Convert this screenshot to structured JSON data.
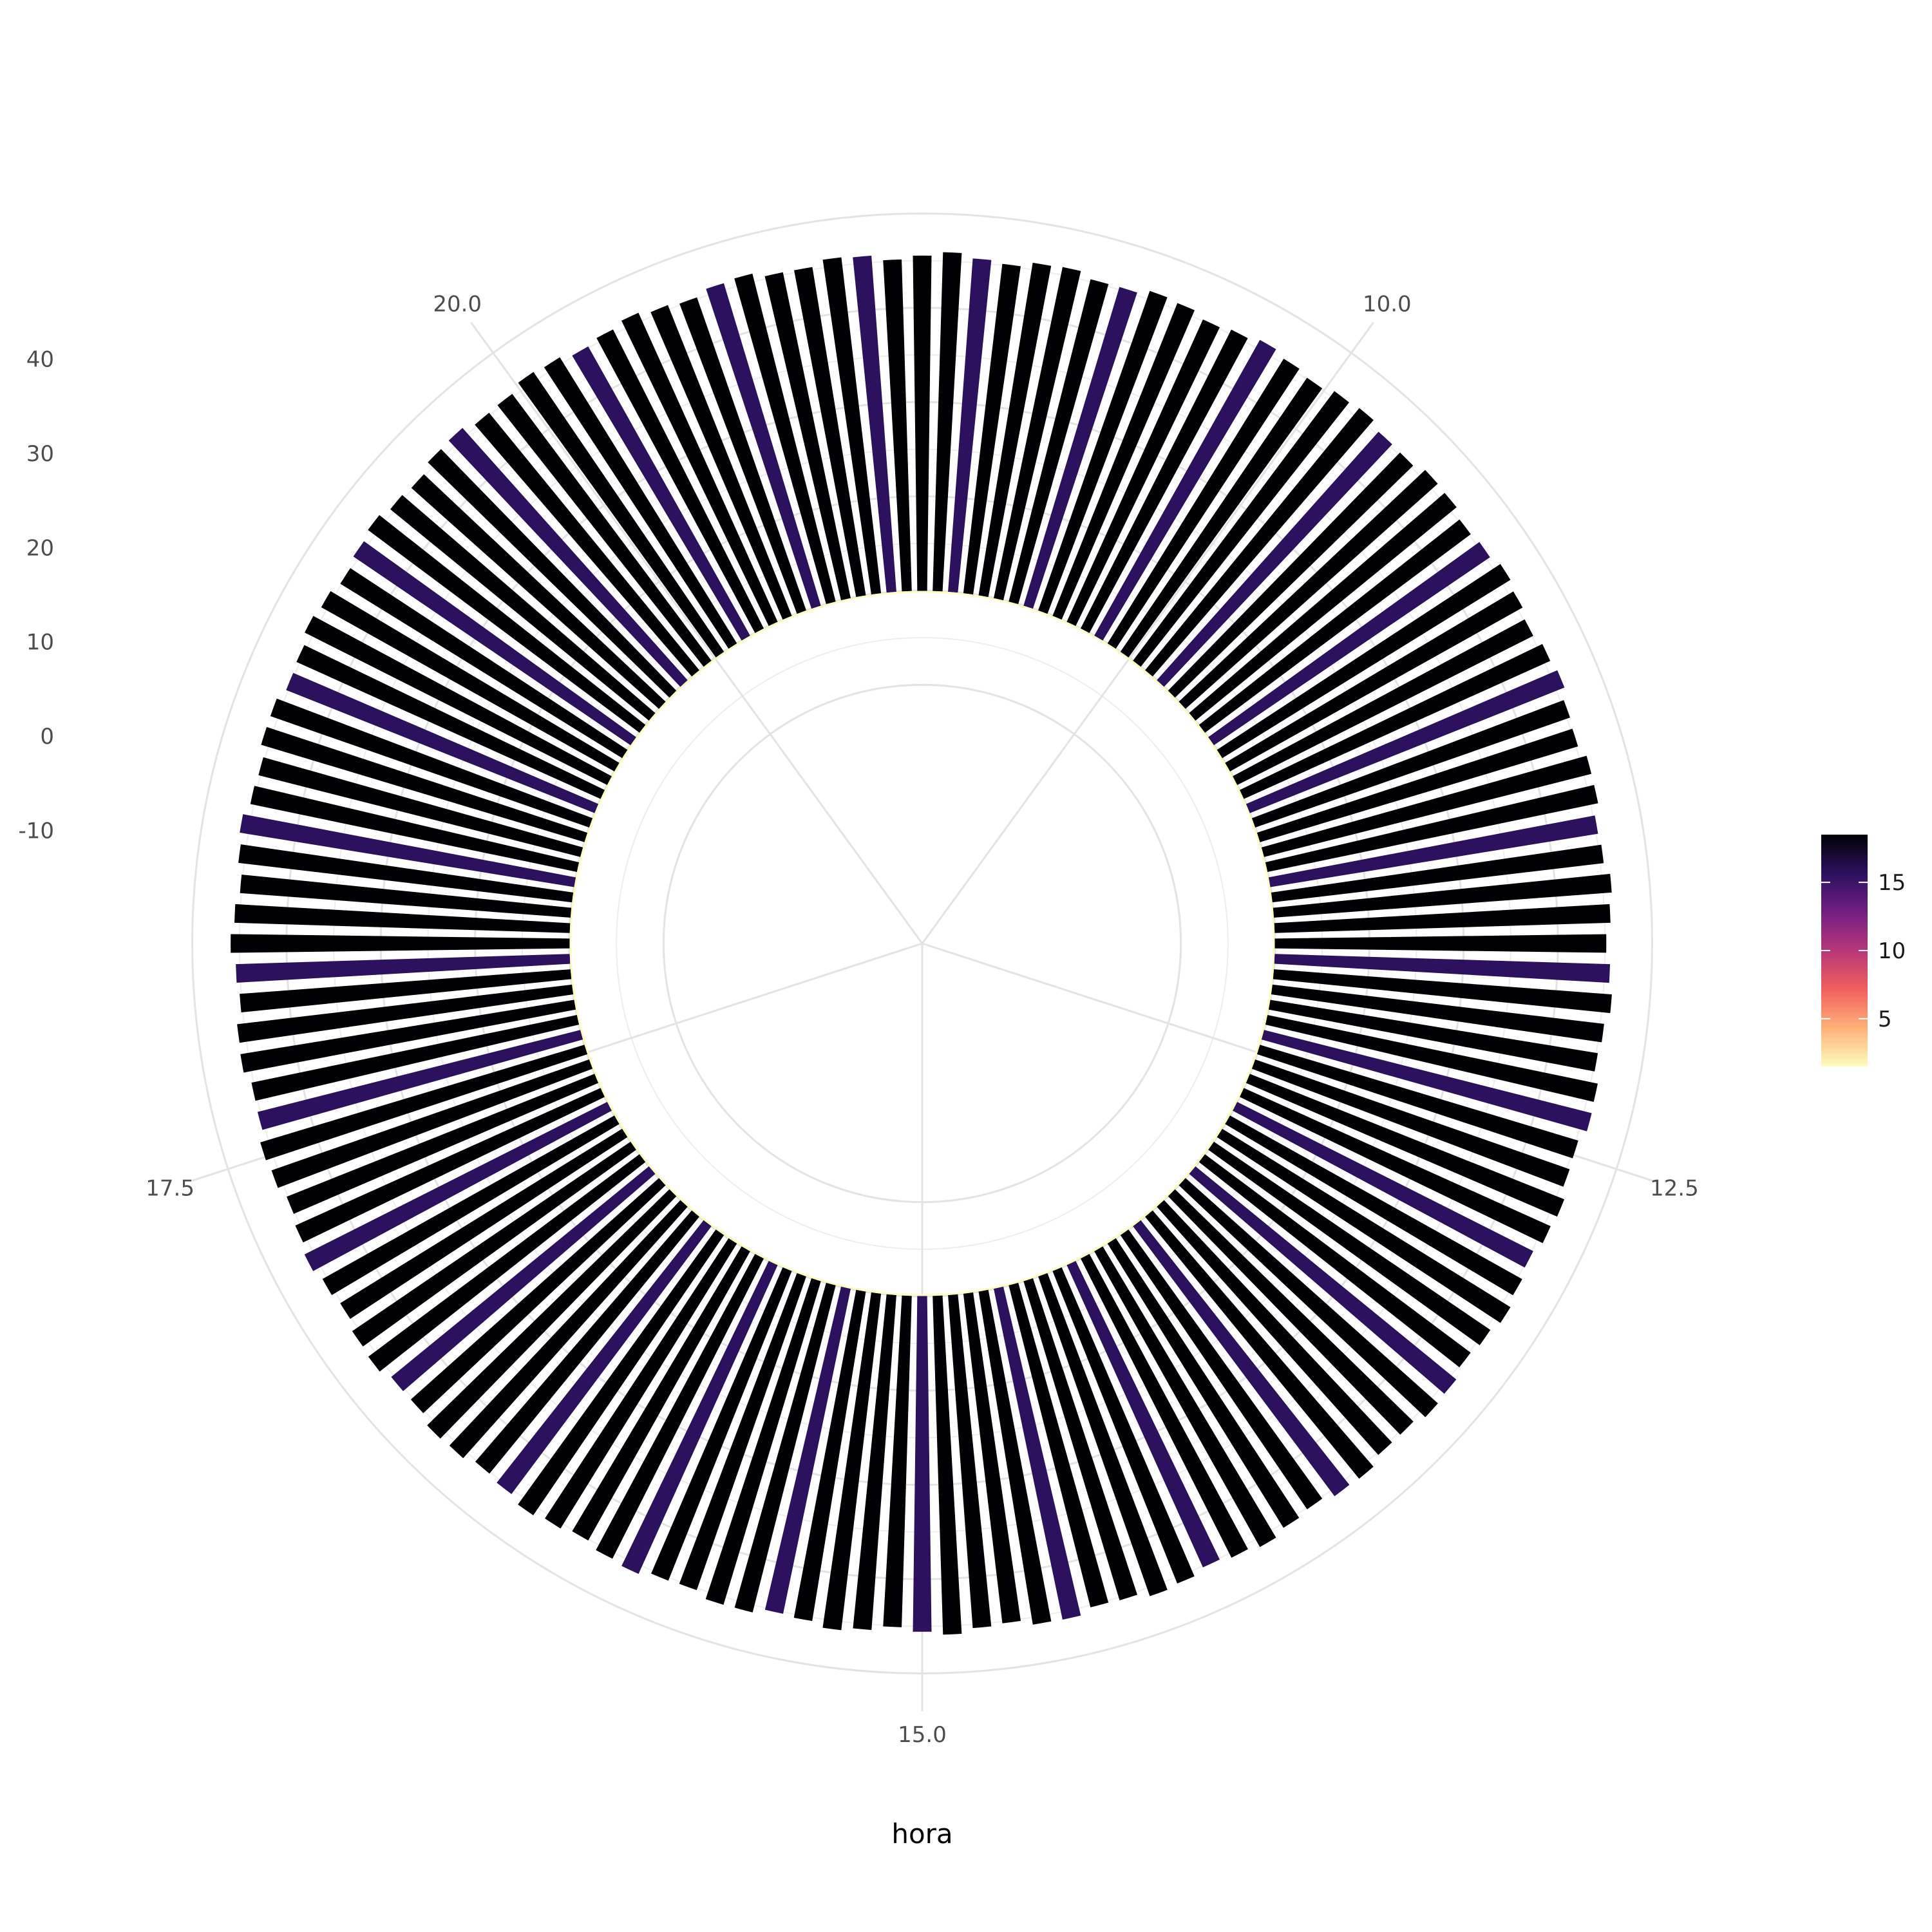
{
  "chart_data": {
    "type": "bar",
    "coord": "polar",
    "title": "",
    "xlabel": "hora",
    "ylabel": "",
    "x_axis": {
      "label": "hora",
      "ticks": [
        10.0,
        12.5,
        15.0,
        17.5,
        20.0
      ],
      "tick_labels": [
        "10.0",
        "12.5",
        "15.0",
        "17.5",
        "20.0"
      ],
      "range": [
        8.75,
        21.25
      ]
    },
    "y_axis": {
      "ticks": [
        -10,
        0,
        10,
        20,
        30,
        40
      ],
      "tick_labels": [
        "-10",
        "0",
        "10",
        "20",
        "30",
        "40"
      ],
      "range": [
        -22,
        44
      ]
    },
    "grid": true,
    "bars": {
      "count": 144,
      "ymin": 0,
      "ymax": 35.5,
      "ymax_variation": 0.4
    },
    "colorbar": {
      "palette": [
        "#fcfdbf",
        "#feb078",
        "#f1605d",
        "#b73779",
        "#721f81",
        "#2c115f",
        "#000004"
      ],
      "ticks": [
        5,
        10,
        15
      ],
      "tick_labels": [
        "5",
        "10",
        "15"
      ],
      "range": [
        1.5,
        18.5
      ],
      "position": "right"
    }
  }
}
